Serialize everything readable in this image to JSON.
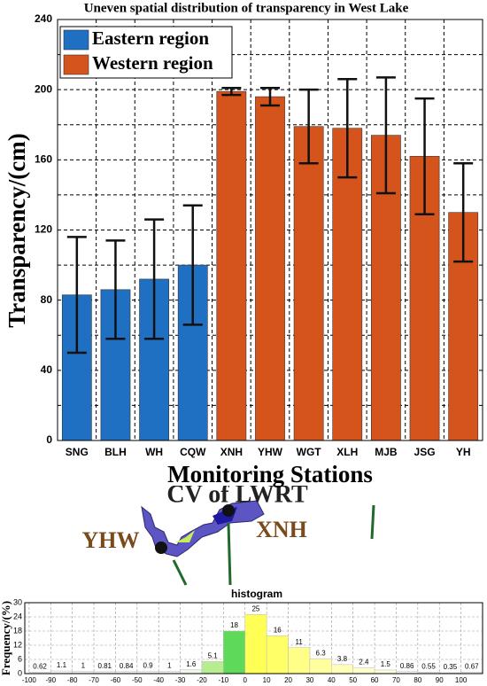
{
  "chart_data": [
    {
      "type": "bar_error",
      "title": "Uneven spatial distribution of transparency in West Lake",
      "x_label": "Monitoring Stations",
      "y_label": "Transparency/(cm)",
      "categories": [
        "SNG",
        "BLH",
        "WH",
        "CQW",
        "XNH",
        "YHW",
        "WGT",
        "XLH",
        "MJB",
        "JSG",
        "YH"
      ],
      "series": [
        {
          "name": "Eastern region",
          "color": "#1f6fc2",
          "values": [
            83,
            86,
            92,
            100,
            null,
            null,
            null,
            null,
            null,
            null,
            null
          ],
          "errors": [
            33,
            28,
            34,
            34,
            null,
            null,
            null,
            null,
            null,
            null,
            null
          ]
        },
        {
          "name": "Western region",
          "color": "#d4541c",
          "values": [
            null,
            null,
            null,
            null,
            199,
            196,
            179,
            178,
            174,
            162,
            130
          ],
          "errors": [
            null,
            null,
            null,
            null,
            2,
            5,
            21,
            28,
            33,
            33,
            28
          ]
        }
      ],
      "ylim": [
        0,
        240
      ],
      "yticks": [
        0,
        40,
        80,
        120,
        160,
        200,
        240
      ],
      "minor_yticks": [
        20,
        60,
        100,
        140,
        180,
        220
      ],
      "grid": true,
      "legend": "upper-left"
    },
    {
      "type": "histogram",
      "title": "histogram",
      "y_label": "Frequency/(%)",
      "bins": [
        -100,
        -90,
        -80,
        -70,
        -60,
        -50,
        -40,
        -30,
        -20,
        -10,
        0,
        10,
        20,
        30,
        40,
        50,
        60,
        70,
        80,
        90,
        100,
        110
      ],
      "values": [
        0.62,
        1.1,
        1,
        0.81,
        0.84,
        0.9,
        1,
        1.6,
        5.1,
        18,
        25,
        16,
        11,
        6.3,
        3.8,
        2.4,
        1.5,
        0.86,
        0.55,
        0.35,
        0.67
      ],
      "colors": [
        "#f4f4f4",
        "#f4f4f4",
        "#f4f4f4",
        "#f4f4f4",
        "#f4f4f4",
        "#f4f4f4",
        "#f4f4f4",
        "#eef6e8",
        "#b8ec90",
        "#5fd95a",
        "#ffff55",
        "#ffff66",
        "#ffff88",
        "#ffffa0",
        "#ffffb8",
        "#ffffcc",
        "#ffffdd",
        "#f8f8f0",
        "#f4f4f4",
        "#f4f4f4",
        "#f4f4f4"
      ],
      "xlim": [
        -102,
        110
      ],
      "xticks": [
        -100,
        -90,
        -80,
        -70,
        -60,
        -50,
        -40,
        -30,
        -20,
        -10,
        0,
        10,
        20,
        30,
        40,
        50,
        60,
        70,
        80,
        90,
        100
      ],
      "ylim": [
        0,
        30
      ],
      "yticks": [
        0,
        6,
        12,
        18,
        24,
        30
      ],
      "grid": true
    }
  ],
  "map": {
    "title": "CV of LWRT",
    "labels": [
      "YHW",
      "XNH"
    ]
  }
}
